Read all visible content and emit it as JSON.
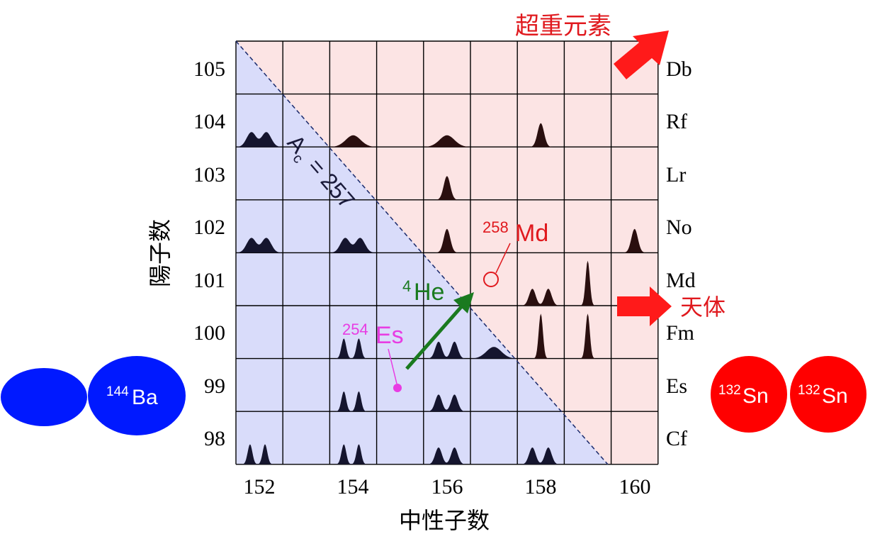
{
  "x_axis": {
    "label": "中性子数",
    "ticks": [
      "152",
      "154",
      "156",
      "158",
      "160"
    ]
  },
  "y_axis": {
    "label": "陽子数",
    "ticks": [
      "105",
      "104",
      "103",
      "102",
      "101",
      "100",
      "99",
      "98"
    ]
  },
  "elements": [
    "Db",
    "Rf",
    "Lr",
    "No",
    "Md",
    "Fm",
    "Es",
    "Cf"
  ],
  "diagonal": {
    "symbol": "A",
    "subscript": "c",
    "value": "= 257"
  },
  "annotations": {
    "superheavy": "超重元素",
    "celestial": "天体",
    "he": {
      "mass": "4",
      "symbol": "He"
    },
    "es": {
      "mass": "254",
      "symbol": "Es"
    },
    "md": {
      "mass": "258",
      "symbol": "Md"
    }
  },
  "fragments": {
    "ba": {
      "mass": "144",
      "symbol": "Ba"
    },
    "sn_left": {
      "mass": "132",
      "symbol": "Sn"
    },
    "sn_right": {
      "mass": "132",
      "symbol": "Sn"
    }
  },
  "colors": {
    "grid": "#000000",
    "symmetric_region": "#d9dcfa",
    "asymmetric_region": "#fce4e4",
    "accent_red": "#e0191e",
    "fragment_red": "#ff0000",
    "ba_blue": "#0019ff",
    "he_green": "#1a7a1f",
    "es_magenta": "#e83ce3",
    "peak_dark": "#15152e",
    "peak_dark_red": "#2a0f0f"
  }
}
